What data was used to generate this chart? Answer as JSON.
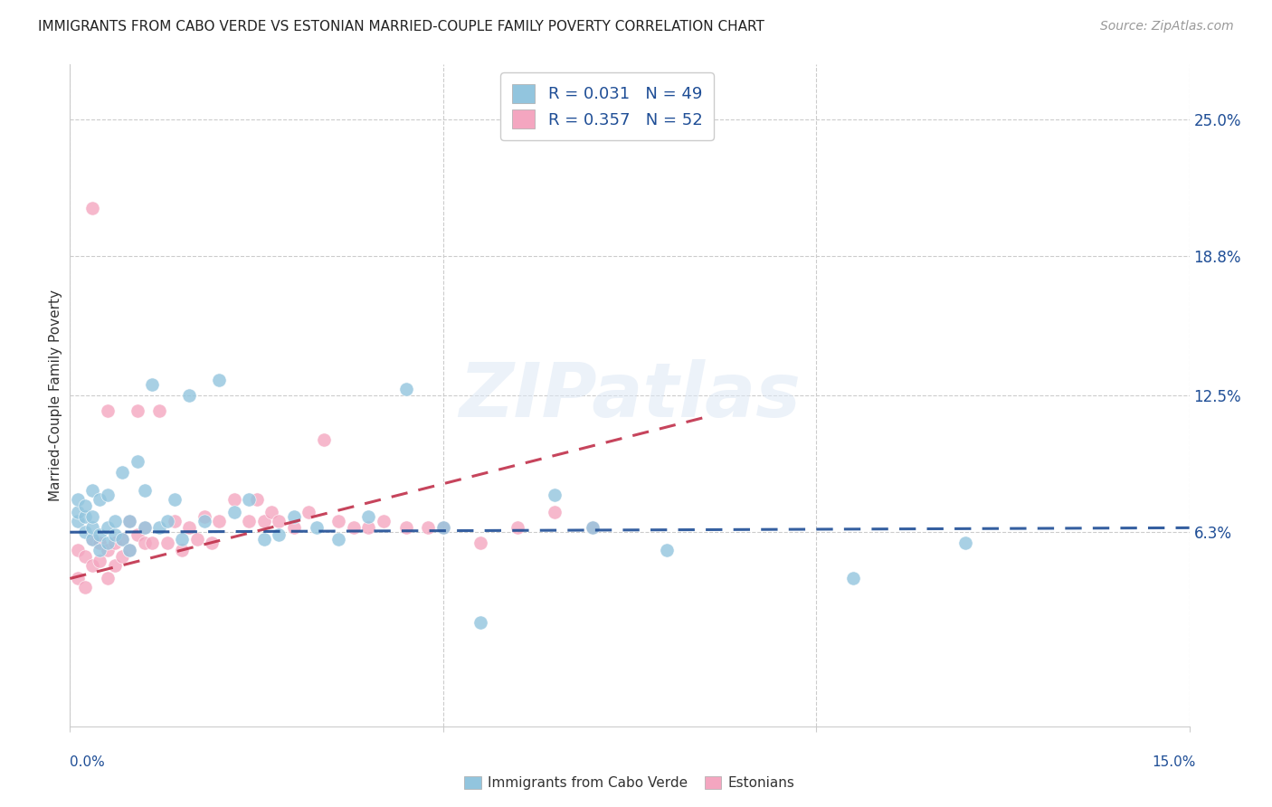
{
  "title": "IMMIGRANTS FROM CABO VERDE VS ESTONIAN MARRIED-COUPLE FAMILY POVERTY CORRELATION CHART",
  "source": "Source: ZipAtlas.com",
  "ylabel": "Married-Couple Family Poverty",
  "y_labels": [
    "25.0%",
    "18.8%",
    "12.5%",
    "6.3%"
  ],
  "y_values": [
    0.25,
    0.188,
    0.125,
    0.063
  ],
  "xmin": 0.0,
  "xmax": 0.15,
  "ymin": -0.025,
  "ymax": 0.275,
  "watermark": "ZIPatlas",
  "color_blue": "#92c5de",
  "color_pink": "#f4a6c0",
  "trend_blue": "#1f4e96",
  "trend_pink": "#c0304a",
  "cabo_verde_x": [
    0.001,
    0.001,
    0.001,
    0.002,
    0.002,
    0.002,
    0.003,
    0.003,
    0.003,
    0.003,
    0.004,
    0.004,
    0.004,
    0.005,
    0.005,
    0.005,
    0.006,
    0.006,
    0.007,
    0.007,
    0.008,
    0.008,
    0.009,
    0.01,
    0.01,
    0.011,
    0.012,
    0.013,
    0.014,
    0.015,
    0.016,
    0.018,
    0.02,
    0.022,
    0.024,
    0.026,
    0.028,
    0.03,
    0.033,
    0.036,
    0.04,
    0.045,
    0.05,
    0.055,
    0.065,
    0.07,
    0.08,
    0.105,
    0.12
  ],
  "cabo_verde_y": [
    0.068,
    0.072,
    0.078,
    0.063,
    0.07,
    0.075,
    0.06,
    0.065,
    0.07,
    0.082,
    0.055,
    0.062,
    0.078,
    0.058,
    0.065,
    0.08,
    0.062,
    0.068,
    0.06,
    0.09,
    0.068,
    0.055,
    0.095,
    0.065,
    0.082,
    0.13,
    0.065,
    0.068,
    0.078,
    0.06,
    0.125,
    0.068,
    0.132,
    0.072,
    0.078,
    0.06,
    0.062,
    0.07,
    0.065,
    0.06,
    0.07,
    0.128,
    0.065,
    0.022,
    0.08,
    0.065,
    0.055,
    0.042,
    0.058
  ],
  "estonian_x": [
    0.001,
    0.001,
    0.002,
    0.002,
    0.003,
    0.003,
    0.003,
    0.004,
    0.004,
    0.005,
    0.005,
    0.005,
    0.006,
    0.006,
    0.007,
    0.007,
    0.008,
    0.008,
    0.009,
    0.009,
    0.01,
    0.01,
    0.011,
    0.012,
    0.013,
    0.014,
    0.015,
    0.016,
    0.017,
    0.018,
    0.019,
    0.02,
    0.022,
    0.024,
    0.025,
    0.026,
    0.027,
    0.028,
    0.03,
    0.032,
    0.034,
    0.036,
    0.038,
    0.04,
    0.042,
    0.045,
    0.048,
    0.05,
    0.055,
    0.06,
    0.065,
    0.07
  ],
  "estonian_y": [
    0.055,
    0.042,
    0.052,
    0.038,
    0.048,
    0.06,
    0.21,
    0.05,
    0.058,
    0.055,
    0.118,
    0.042,
    0.058,
    0.048,
    0.052,
    0.06,
    0.055,
    0.068,
    0.062,
    0.118,
    0.058,
    0.065,
    0.058,
    0.118,
    0.058,
    0.068,
    0.055,
    0.065,
    0.06,
    0.07,
    0.058,
    0.068,
    0.078,
    0.068,
    0.078,
    0.068,
    0.072,
    0.068,
    0.065,
    0.072,
    0.105,
    0.068,
    0.065,
    0.065,
    0.068,
    0.065,
    0.065,
    0.065,
    0.058,
    0.065,
    0.072,
    0.065
  ],
  "cv_trend_x": [
    0.0,
    0.15
  ],
  "cv_trend_y": [
    0.063,
    0.065
  ],
  "est_trend_x": [
    0.0,
    0.085
  ],
  "est_trend_y": [
    0.042,
    0.115
  ]
}
